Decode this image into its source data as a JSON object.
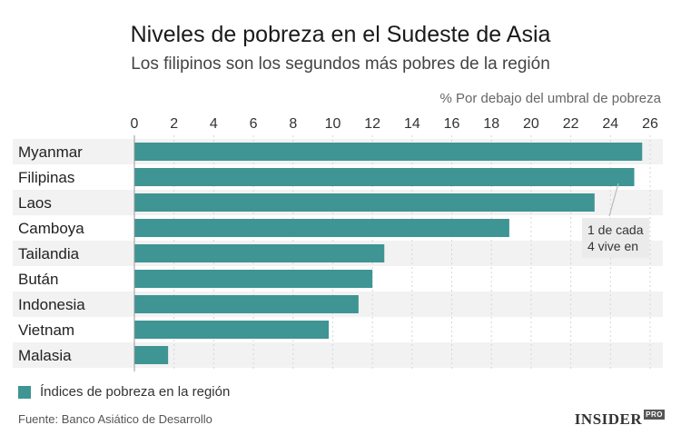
{
  "header": {
    "title": "Niveles de pobreza en el Sudeste de Asia",
    "subtitle": "Los filipinos son los segundos más pobres de la región",
    "axis_title": "% Por debajo del umbral de pobreza"
  },
  "annotation": {
    "line1": "1 de cada",
    "line2": "4 vive en"
  },
  "legend": {
    "label": "Índices de pobreza en la región"
  },
  "footer": {
    "source": "Fuente: Banco Asiático de Desarrollo",
    "brand": "INSIDER",
    "brand_sub": "PRO"
  },
  "colors": {
    "bar": "#3f9494",
    "row_band": "#f2f2f2",
    "axis_text": "#333333"
  },
  "chart_data": {
    "type": "bar",
    "orientation": "horizontal",
    "xlabel": "% Por debajo del umbral de pobreza",
    "xlim": [
      0,
      26
    ],
    "ticks": [
      0,
      2,
      4,
      6,
      8,
      10,
      12,
      14,
      16,
      18,
      20,
      22,
      24,
      26
    ],
    "categories": [
      "Myanmar",
      "Filipinas",
      "Laos",
      "Camboya",
      "Tailandia",
      "Bután",
      "Indonesia",
      "Vietnam",
      "Malasia"
    ],
    "series": [
      {
        "name": "Índices de pobreza en la región",
        "values": [
          25.6,
          25.2,
          23.2,
          18.9,
          12.6,
          12.0,
          11.3,
          9.8,
          1.7
        ]
      }
    ],
    "grid": true,
    "legend_position": "bottom-left"
  }
}
